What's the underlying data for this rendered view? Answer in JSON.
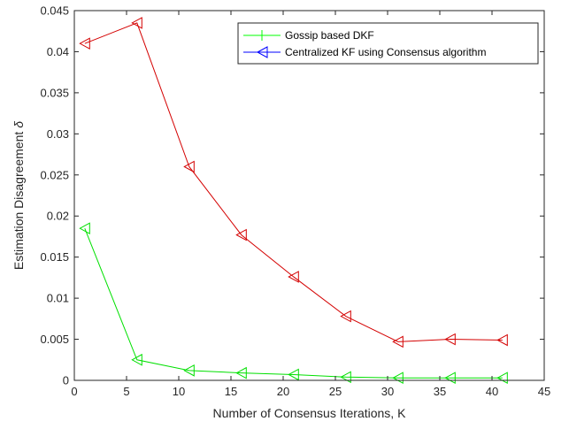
{
  "chart_data": {
    "type": "line",
    "title": "",
    "xlabel": "Number of Consensus Iterations, K",
    "ylabel": "Estimation Disagreement",
    "ylabel_symbol": "δ",
    "xlim": [
      0,
      45
    ],
    "ylim": [
      0,
      0.045
    ],
    "xticks": [
      0,
      5,
      10,
      15,
      20,
      25,
      30,
      35,
      40,
      45
    ],
    "yticks": [
      0,
      0.005,
      0.01,
      0.015,
      0.02,
      0.025,
      0.03,
      0.035,
      0.04,
      0.045
    ],
    "xtick_labels": [
      "0",
      "5",
      "10",
      "15",
      "20",
      "25",
      "30",
      "35",
      "40",
      "45"
    ],
    "ytick_labels": [
      "0",
      "0.005",
      "0.01",
      "0.015",
      "0.02",
      "0.025",
      "0.03",
      "0.035",
      "0.04",
      "0.045"
    ],
    "grid": false,
    "legend_position": "top-right",
    "legend": [
      {
        "label": "Gossip based DKF",
        "color": "#00ff00",
        "marker": "plus"
      },
      {
        "label": "Centralized KF using Consensus algorithm",
        "color": "#0000ff",
        "marker": "triangle-left"
      }
    ],
    "series": [
      {
        "name": "Gossip based DKF",
        "line_color": "#00e000",
        "marker_color": "#00e000",
        "x": [
          1,
          6,
          11,
          16,
          21,
          26,
          31,
          36,
          41
        ],
        "values": [
          0.0185,
          0.0025,
          0.0012,
          0.0009,
          0.0007,
          0.0004,
          0.0003,
          0.0003,
          0.0003
        ]
      },
      {
        "name": "Centralized KF using Consensus algorithm",
        "line_color": "#d40000",
        "marker_color": "#d40000",
        "x": [
          1,
          6,
          11,
          16,
          21,
          26,
          31,
          36,
          41
        ],
        "values": [
          0.041,
          0.0435,
          0.026,
          0.0177,
          0.0126,
          0.0078,
          0.0047,
          0.005,
          0.0049
        ]
      }
    ]
  }
}
